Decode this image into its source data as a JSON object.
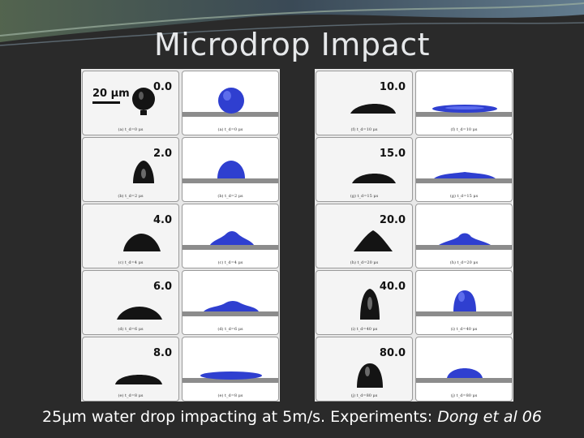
{
  "slide": {
    "title": "Microdrop Impact",
    "scale_label": "20 μm",
    "footer": {
      "text": "25μm water drop impacting at 5m/s.  Experiments: ",
      "reference": "Dong et al 06"
    }
  },
  "left_panel": {
    "rows": [
      {
        "time": "0.0",
        "exp_caption": "(a) t_d=0 μs",
        "sim_caption": "(a) t_d=0 μs"
      },
      {
        "time": "2.0",
        "exp_caption": "(b) t_d=2 μs",
        "sim_caption": "(b) t_d=2 μs"
      },
      {
        "time": "4.0",
        "exp_caption": "(c) t_d=4 μs",
        "sim_caption": "(c) t_d=4 μs"
      },
      {
        "time": "6.0",
        "exp_caption": "(d) t_d=6 μs",
        "sim_caption": "(d) t_d=6 μs"
      },
      {
        "time": "8.0",
        "exp_caption": "(e) t_d=8 μs",
        "sim_caption": "(e) t_d=8 μs"
      }
    ]
  },
  "right_panel": {
    "rows": [
      {
        "time": "10.0",
        "exp_caption": "(f) t_d=10 μs",
        "sim_caption": "(f) t_d=10 μs"
      },
      {
        "time": "15.0",
        "exp_caption": "(g) t_d=15 μs",
        "sim_caption": "(g) t_d=15 μs"
      },
      {
        "time": "20.0",
        "exp_caption": "(h) t_d=20 μs",
        "sim_caption": "(h) t_d=20 μs"
      },
      {
        "time": "40.0",
        "exp_caption": "(i) t_d=40 μs",
        "sim_caption": "(i) t_d=40 μs"
      },
      {
        "time": "80.0",
        "exp_caption": "(j) t_d=80 μs",
        "sim_caption": "(j) t_d=80 μs"
      }
    ]
  },
  "colors": {
    "background": "#2a2a2a",
    "title": "#e6e8ea",
    "sim_drop": "#2f3fd0",
    "sim_drop_highlight": "#7d8cff",
    "substrate": "#8c8c8c",
    "exp_drop": "#141414"
  }
}
